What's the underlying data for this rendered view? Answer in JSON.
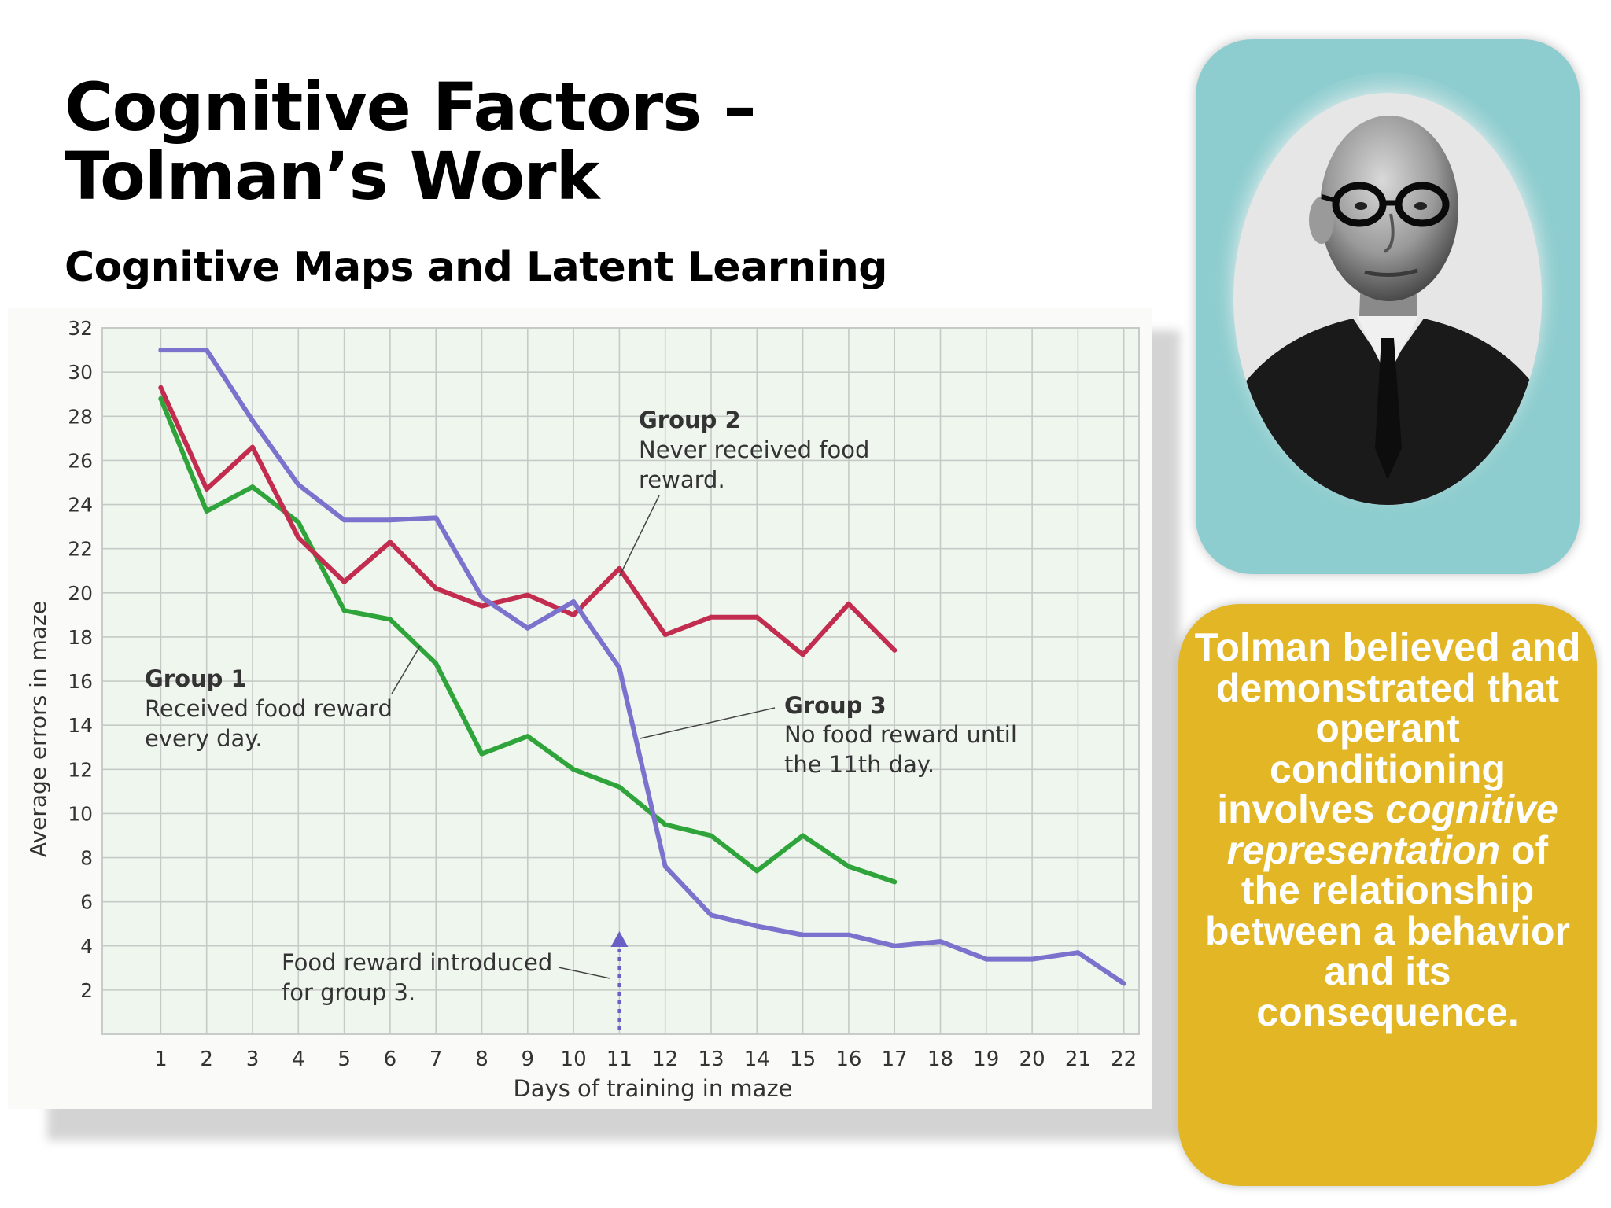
{
  "slide": {
    "title_line1": "Cognitive Factors –",
    "title_line2": "Tolman’s Work",
    "subtitle": "Cognitive Maps and Latent Learning"
  },
  "portrait": {
    "icon": "man-portrait-photo"
  },
  "caption": {
    "part1": "Tolman believed and demonstrated that operant conditioning involves",
    "emphasis": "cognitive representation",
    "part2": "of the relationship between a behavior and its consequence."
  },
  "chart_data": {
    "type": "line",
    "title": "",
    "xlabel": "Days of training in maze",
    "ylabel": "Average errors in maze",
    "xlim": [
      0,
      22
    ],
    "ylim": [
      0,
      32
    ],
    "x_ticks": [
      1,
      2,
      3,
      4,
      5,
      6,
      7,
      8,
      9,
      10,
      11,
      12,
      13,
      14,
      15,
      16,
      17,
      18,
      19,
      20,
      21,
      22
    ],
    "y_ticks": [
      2,
      4,
      6,
      8,
      10,
      12,
      14,
      16,
      18,
      20,
      22,
      24,
      26,
      28,
      30,
      32
    ],
    "grid": true,
    "series": [
      {
        "color": "#2fa43a",
        "x": [
          1,
          2,
          3,
          4,
          5,
          6,
          7,
          8,
          9,
          10,
          11,
          12,
          13,
          14,
          15,
          16,
          17
        ],
        "y": [
          28.8,
          23.7,
          24.8,
          23.2,
          19.2,
          18.8,
          16.8,
          12.7,
          13.5,
          12.0,
          11.2,
          9.5,
          9.0,
          7.4,
          9.0,
          7.6,
          6.9
        ]
      },
      {
        "color": "#c22d4f",
        "x": [
          1,
          2,
          3,
          4,
          5,
          6,
          7,
          8,
          9,
          10,
          11,
          12,
          13,
          14,
          15,
          16,
          17
        ],
        "y": [
          29.3,
          24.7,
          26.6,
          22.5,
          20.5,
          22.3,
          20.2,
          19.4,
          19.9,
          19.0,
          21.1,
          18.1,
          18.9,
          18.9,
          17.2,
          19.5,
          17.4
        ]
      },
      {
        "color": "#7a72cc",
        "x": [
          1,
          2,
          3,
          4,
          5,
          6,
          7,
          8,
          9,
          10,
          11,
          12,
          13,
          14,
          15,
          16,
          17,
          18,
          19,
          20,
          21,
          22
        ],
        "y": [
          31.0,
          31.0,
          27.8,
          24.9,
          23.3,
          23.3,
          23.4,
          19.8,
          18.4,
          19.6,
          16.6,
          7.6,
          5.4,
          4.9,
          4.5,
          4.5,
          4.0,
          4.2,
          3.4,
          3.4,
          3.7,
          2.3
        ]
      }
    ],
    "annotations": {
      "group1": {
        "heading": "Group 1",
        "line1": "Received food reward",
        "line2": "every day."
      },
      "group2": {
        "heading": "Group 2",
        "line1": "Never received food",
        "line2": "reward."
      },
      "group3": {
        "heading": "Group 3",
        "line1": "No food reward until",
        "line2": "the 11th day."
      },
      "food": {
        "line1": "Food reward introduced",
        "line2": "for group 3.",
        "x": 11
      }
    }
  }
}
